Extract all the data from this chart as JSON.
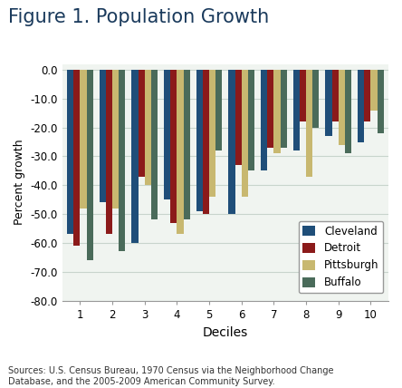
{
  "title": "Figure 1. Population Growth",
  "ylabel": "Percent growth",
  "xlabel": "Deciles",
  "ylim": [
    -80,
    2
  ],
  "yticks": [
    0.0,
    -10.0,
    -20.0,
    -30.0,
    -40.0,
    -50.0,
    -60.0,
    -70.0,
    -80.0
  ],
  "deciles": [
    1,
    2,
    3,
    4,
    5,
    6,
    7,
    8,
    9,
    10
  ],
  "cities": [
    "Cleveland",
    "Detroit",
    "Pittsburgh",
    "Buffalo"
  ],
  "colors": [
    "#1f4e79",
    "#8b1a1a",
    "#c8b870",
    "#4a6b5a"
  ],
  "data": {
    "Cleveland": [
      -57,
      -46,
      -60,
      -45,
      -49,
      -50,
      -35,
      -28,
      -23,
      -25
    ],
    "Detroit": [
      -61,
      -57,
      -37,
      -53,
      -50,
      -33,
      -27,
      -18,
      -18,
      -18
    ],
    "Pittsburgh": [
      -48,
      -48,
      -40,
      -57,
      -44,
      -44,
      -29,
      -37,
      -26,
      -14
    ],
    "Buffalo": [
      -66,
      -63,
      -52,
      -52,
      -28,
      -35,
      -27,
      -20,
      -29,
      -22
    ]
  },
  "source_text": "Sources: U.S. Census Bureau, 1970 Census via the Neighborhood Change\nDatabase, and the 2005-2009 American Community Survey.",
  "bg_color": "#ffffff",
  "plot_bg_color": "#f0f4f0",
  "grid_color": "#c8d4cc",
  "title_color": "#1a3a5c",
  "title_fontsize": 15,
  "label_fontsize": 9,
  "tick_fontsize": 8.5
}
